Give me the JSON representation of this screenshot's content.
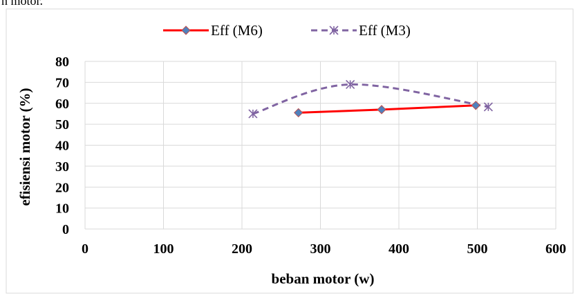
{
  "page": {
    "top_text": "n motor."
  },
  "chart_data": {
    "type": "line",
    "title": "",
    "xlabel": "beban motor (w)",
    "ylabel": "efisiensi motor (%)",
    "xlim": [
      0,
      600
    ],
    "ylim": [
      0,
      80
    ],
    "x_ticks": [
      0,
      100,
      200,
      300,
      400,
      500,
      600
    ],
    "y_ticks": [
      0,
      10,
      20,
      30,
      40,
      50,
      60,
      70,
      80
    ],
    "grid": true,
    "legend_position": "top",
    "series": [
      {
        "name": "Eff (M6)",
        "color": "#ff0000",
        "marker": "diamond",
        "marker_color": "#4f81bd",
        "style": "solid",
        "points": [
          [
            272,
            55.5
          ],
          [
            378,
            57
          ],
          [
            498,
            59
          ]
        ]
      },
      {
        "name": "Eff (M3)",
        "color": "#8064a2",
        "marker": "star-x",
        "style": "dashed",
        "smooth": true,
        "points": [
          [
            214,
            55
          ],
          [
            338,
            69
          ],
          [
            514,
            58.3
          ]
        ]
      }
    ]
  }
}
